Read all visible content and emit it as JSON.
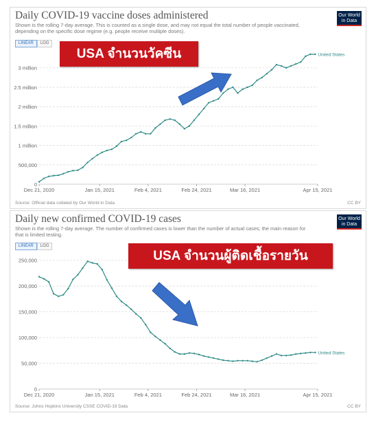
{
  "charts": [
    {
      "title": "Daily COVID-19 vaccine doses administered",
      "subtitle": "Shown is the rolling 7-day average. This is counted as a single dose, and may not equal the total number of people vaccinated, depending on the specific dose regime (e.g. people receive multiple doses).",
      "logo": [
        "Our World",
        "in Data"
      ],
      "scale_buttons": [
        "LINEAR",
        "LOG"
      ],
      "active_scale": "LINEAR",
      "source": "Source: Official data collated by Our World in Data",
      "license": "CC BY",
      "banner": "USA จำนวนวัคซีน"
    },
    {
      "title": "Daily new confirmed COVID-19 cases",
      "subtitle": "Shown is the rolling 7-day average. The number of confirmed cases is lower than the number of actual cases; the main reason for that is limited testing.",
      "logo": [
        "Our World",
        "in Data"
      ],
      "scale_buttons": [
        "LINEAR",
        "LOG"
      ],
      "active_scale": "LINEAR",
      "source": "Source: Johns Hopkins University CSSE COVID-19 Data",
      "license": "CC BY",
      "banner": "USA จำนวนผู้ติดเชื้อรายวัน"
    }
  ],
  "chart_data": [
    {
      "type": "line",
      "title": "Daily COVID-19 vaccine doses administered",
      "xlabel": "",
      "ylabel": "",
      "x_ticks": [
        "Dec 21, 2020",
        "Jan 15, 2021",
        "Feb 4, 2021",
        "Feb 24, 2021",
        "Mar 16, 2021",
        "Apr 15, 2021"
      ],
      "x_tick_days": [
        0,
        25,
        45,
        65,
        85,
        115
      ],
      "y_ticks": [
        0,
        500000,
        1000000,
        1500000,
        2000000,
        2500000,
        3000000
      ],
      "y_tick_labels": [
        "0",
        "500,000",
        "1 million",
        "1.5 million",
        "2 million",
        "2.5 million",
        "3 million"
      ],
      "ylim": [
        0,
        3350000
      ],
      "xlim": [
        0,
        115
      ],
      "grid": true,
      "line_color": "#2e8b87",
      "series": [
        {
          "name": "United States",
          "x": [
            0,
            2,
            4,
            6,
            8,
            10,
            12,
            14,
            16,
            18,
            20,
            22,
            24,
            26,
            28,
            30,
            32,
            34,
            36,
            38,
            40,
            42,
            44,
            46,
            48,
            50,
            52,
            54,
            56,
            58,
            60,
            62,
            64,
            66,
            68,
            70,
            72,
            74,
            76,
            78,
            80,
            82,
            84,
            86,
            88,
            90,
            92,
            94,
            96,
            98,
            100,
            102,
            104,
            106,
            108,
            110,
            112,
            114
          ],
          "values": [
            60000,
            150000,
            200000,
            220000,
            230000,
            270000,
            320000,
            350000,
            360000,
            430000,
            560000,
            660000,
            750000,
            820000,
            870000,
            900000,
            980000,
            1100000,
            1130000,
            1200000,
            1300000,
            1350000,
            1300000,
            1300000,
            1450000,
            1550000,
            1650000,
            1680000,
            1650000,
            1550000,
            1430000,
            1500000,
            1650000,
            1800000,
            1950000,
            2100000,
            2150000,
            2200000,
            2350000,
            2450000,
            2500000,
            2350000,
            2450000,
            2500000,
            2550000,
            2680000,
            2750000,
            2850000,
            2950000,
            3080000,
            3050000,
            3000000,
            3050000,
            3100000,
            3150000,
            3300000,
            3350000,
            3350000
          ]
        }
      ],
      "series_label": "United States"
    },
    {
      "type": "line",
      "title": "Daily new confirmed COVID-19 cases",
      "xlabel": "",
      "ylabel": "",
      "x_ticks": [
        "Dec 21, 2020",
        "Jan 15, 2021",
        "Feb 4, 2021",
        "Feb 24, 2021",
        "Mar 16, 2021",
        "Apr 15, 2021"
      ],
      "x_tick_days": [
        0,
        25,
        45,
        65,
        85,
        115
      ],
      "y_ticks": [
        0,
        50000,
        100000,
        150000,
        200000,
        250000
      ],
      "y_tick_labels": [
        "0",
        "50,000",
        "100,000",
        "150,000",
        "200,000",
        "250,000"
      ],
      "ylim": [
        0,
        255000
      ],
      "xlim": [
        0,
        115
      ],
      "grid": true,
      "line_color": "#2e8b87",
      "series": [
        {
          "name": "United States",
          "x": [
            0,
            2,
            4,
            6,
            8,
            10,
            12,
            14,
            16,
            18,
            20,
            22,
            24,
            26,
            28,
            30,
            32,
            34,
            36,
            38,
            40,
            42,
            44,
            46,
            48,
            50,
            52,
            54,
            56,
            58,
            60,
            62,
            64,
            66,
            68,
            70,
            72,
            74,
            76,
            78,
            80,
            82,
            84,
            86,
            88,
            90,
            92,
            94,
            96,
            98,
            100,
            102,
            104,
            106,
            108,
            110,
            112,
            114
          ],
          "values": [
            218000,
            214000,
            208000,
            185000,
            180000,
            183000,
            195000,
            213000,
            222000,
            235000,
            248000,
            245000,
            243000,
            232000,
            212000,
            196000,
            180000,
            170000,
            163000,
            155000,
            146000,
            138000,
            125000,
            110000,
            102000,
            95000,
            88000,
            79000,
            72000,
            68000,
            68000,
            70000,
            69000,
            67000,
            64000,
            62000,
            60000,
            58000,
            56000,
            55000,
            54000,
            55000,
            55000,
            55000,
            54000,
            53000,
            56000,
            60000,
            64000,
            68000,
            65000,
            65000,
            66000,
            68000,
            69000,
            70000,
            71000,
            71000
          ]
        }
      ],
      "series_label": "United States"
    }
  ]
}
